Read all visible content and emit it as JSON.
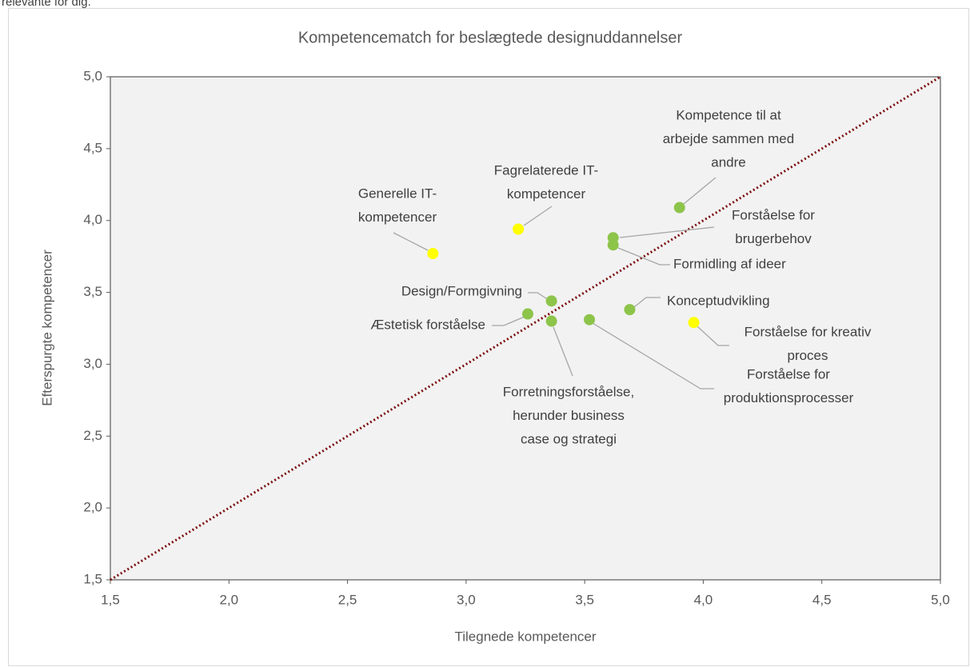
{
  "header_text": "relevante for dig.",
  "chart_data": {
    "type": "scatter",
    "title": "Kompetencematch for beslægtede designuddannelser",
    "x_label": "Tilegnede kompetencer",
    "y_label": "Efterspurgte kompetencer",
    "xlim": [
      1.5,
      5.0
    ],
    "ylim": [
      1.5,
      5.0
    ],
    "xticks": [
      {
        "value": 1.5,
        "label": "1,5"
      },
      {
        "value": 2.0,
        "label": "2,0"
      },
      {
        "value": 2.5,
        "label": "2,5"
      },
      {
        "value": 3.0,
        "label": "3,0"
      },
      {
        "value": 3.5,
        "label": "3,5"
      },
      {
        "value": 4.0,
        "label": "4,0"
      },
      {
        "value": 4.5,
        "label": "4,5"
      },
      {
        "value": 5.0,
        "label": "5,0"
      }
    ],
    "yticks": [
      {
        "value": 1.5,
        "label": "1,5"
      },
      {
        "value": 2.0,
        "label": "2,0"
      },
      {
        "value": 2.5,
        "label": "2,5"
      },
      {
        "value": 3.0,
        "label": "3,0"
      },
      {
        "value": 3.5,
        "label": "3,5"
      },
      {
        "value": 4.0,
        "label": "4,0"
      },
      {
        "value": 4.5,
        "label": "4,5"
      },
      {
        "value": 5.0,
        "label": "5,0"
      }
    ],
    "points": [
      {
        "label": [
          "Generelle IT-",
          "kompetencer"
        ],
        "x": 2.86,
        "y": 3.77,
        "color": "#ffff00"
      },
      {
        "label": [
          "Fagrelaterede IT-",
          "kompetencer"
        ],
        "x": 3.22,
        "y": 3.94,
        "color": "#ffff00"
      },
      {
        "label": [
          "Kompetence til at",
          "arbejde sammen med",
          "andre"
        ],
        "x": 3.9,
        "y": 4.09,
        "color": "#8dc44a"
      },
      {
        "label": [
          "Forståelse for",
          "brugerbehov"
        ],
        "x": 3.62,
        "y": 3.88,
        "color": "#8dc44a"
      },
      {
        "label": [
          "Formidling af ideer"
        ],
        "x": 3.62,
        "y": 3.83,
        "color": "#8dc44a"
      },
      {
        "label": [
          "Design/Formgivning"
        ],
        "x": 3.36,
        "y": 3.44,
        "color": "#8dc44a"
      },
      {
        "label": [
          "Konceptudvikling"
        ],
        "x": 3.69,
        "y": 3.38,
        "color": "#8dc44a"
      },
      {
        "label": [
          "Forståelse for kreativ",
          "proces"
        ],
        "x": 3.96,
        "y": 3.29,
        "color": "#ffff00"
      },
      {
        "label": [
          "Æstetisk forståelse"
        ],
        "x": 3.26,
        "y": 3.35,
        "color": "#8dc44a"
      },
      {
        "label": [
          "Forretningsforståelse,",
          "herunder business",
          "case og strategi"
        ],
        "x": 3.36,
        "y": 3.3,
        "color": "#8dc44a"
      },
      {
        "label": [
          "Forståelse for",
          "produktionsprocesser"
        ],
        "x": 3.52,
        "y": 3.31,
        "color": "#8dc44a"
      }
    ]
  }
}
